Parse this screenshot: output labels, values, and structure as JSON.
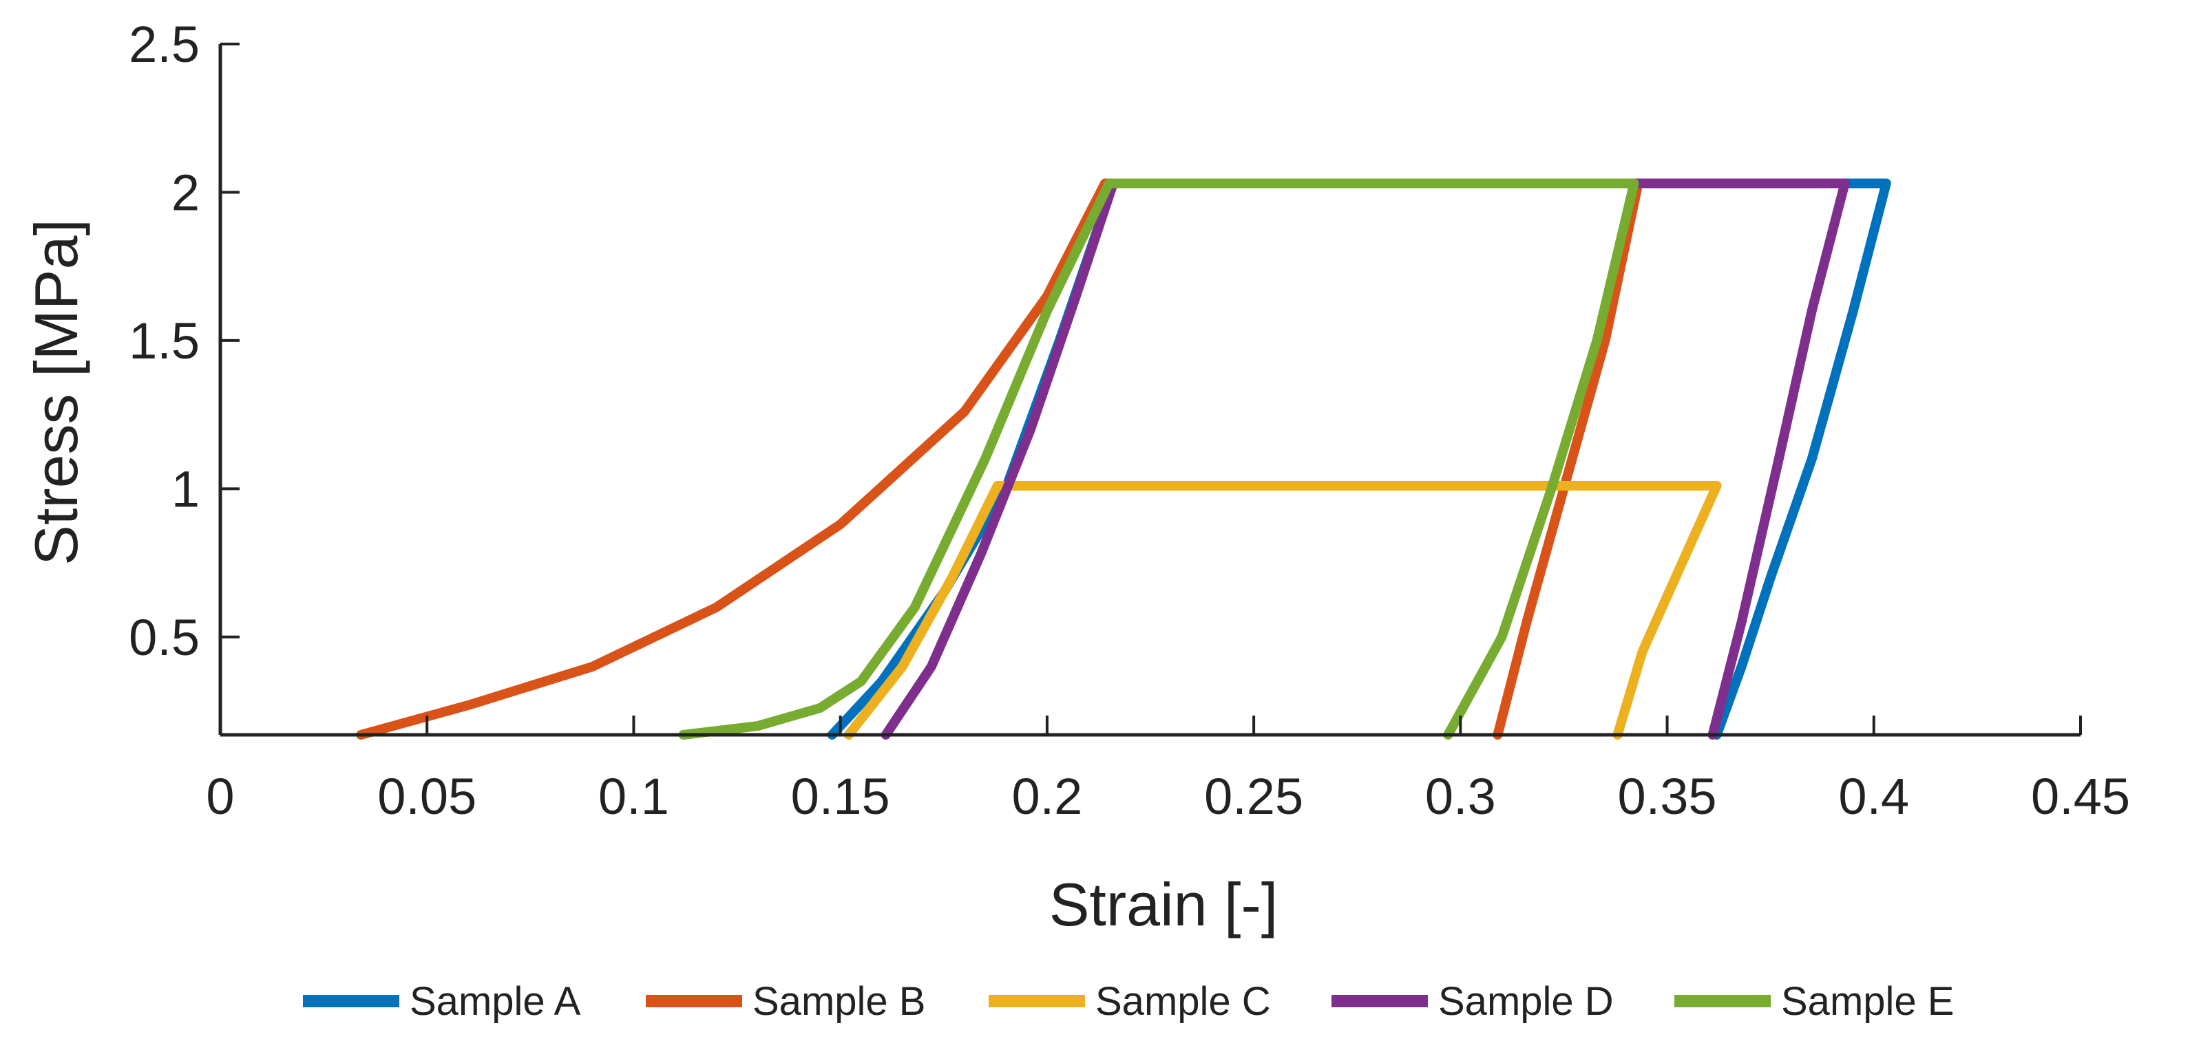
{
  "chart_data": {
    "type": "line",
    "title": "",
    "xlabel": "Strain [-]",
    "ylabel": "Stress [MPa]",
    "xlim": [
      0,
      0.45
    ],
    "ylim": [
      0.17,
      2.5
    ],
    "xticks": [
      0,
      0.05,
      0.1,
      0.15,
      0.2,
      0.25,
      0.3,
      0.35,
      0.4,
      0.45
    ],
    "xtick_labels": [
      "0",
      "0.05",
      "0.1",
      "0.15",
      "0.2",
      "0.25",
      "0.3",
      "0.35",
      "0.4",
      "0.45"
    ],
    "yticks": [
      0.5,
      1,
      1.5,
      2,
      2.5
    ],
    "ytick_labels": [
      "0.5",
      "1",
      "1.5",
      "2",
      "2.5"
    ],
    "grid": false,
    "legend_position": "bottom",
    "series": [
      {
        "name": "Sample A",
        "color": "#0072BD",
        "x": [
          0.148,
          0.16,
          0.175,
          0.19,
          0.203,
          0.216,
          0.3,
          0.4,
          0.403,
          0.395,
          0.385,
          0.375,
          0.368,
          0.362
        ],
        "y": [
          0.17,
          0.35,
          0.65,
          1.0,
          1.5,
          2.03,
          2.03,
          2.03,
          2.03,
          1.6,
          1.1,
          0.7,
          0.4,
          0.17
        ]
      },
      {
        "name": "Sample B",
        "color": "#D95319",
        "x": [
          0.034,
          0.06,
          0.09,
          0.12,
          0.15,
          0.18,
          0.2,
          0.214,
          0.3,
          0.343,
          0.335,
          0.325,
          0.316,
          0.309
        ],
        "y": [
          0.17,
          0.27,
          0.4,
          0.6,
          0.88,
          1.26,
          1.65,
          2.03,
          2.03,
          2.03,
          1.5,
          1.0,
          0.55,
          0.17
        ]
      },
      {
        "name": "Sample C",
        "color": "#EDB120",
        "x": [
          0.152,
          0.165,
          0.177,
          0.188,
          0.25,
          0.3,
          0.362,
          0.352,
          0.344,
          0.338
        ],
        "y": [
          0.17,
          0.4,
          0.7,
          1.01,
          1.01,
          1.01,
          1.01,
          0.7,
          0.45,
          0.17
        ]
      },
      {
        "name": "Sample D",
        "color": "#7E2F8E",
        "x": [
          0.161,
          0.172,
          0.184,
          0.196,
          0.207,
          0.216,
          0.3,
          0.393,
          0.385,
          0.377,
          0.368,
          0.361
        ],
        "y": [
          0.17,
          0.4,
          0.78,
          1.2,
          1.65,
          2.03,
          2.03,
          2.03,
          1.6,
          1.1,
          0.55,
          0.17
        ]
      },
      {
        "name": "Sample E",
        "color": "#77AC30",
        "x": [
          0.112,
          0.13,
          0.145,
          0.155,
          0.168,
          0.185,
          0.2,
          0.215,
          0.28,
          0.342,
          0.333,
          0.322,
          0.31,
          0.297
        ],
        "y": [
          0.17,
          0.2,
          0.26,
          0.35,
          0.6,
          1.1,
          1.6,
          2.03,
          2.03,
          2.03,
          1.5,
          1.0,
          0.5,
          0.17
        ]
      }
    ]
  }
}
